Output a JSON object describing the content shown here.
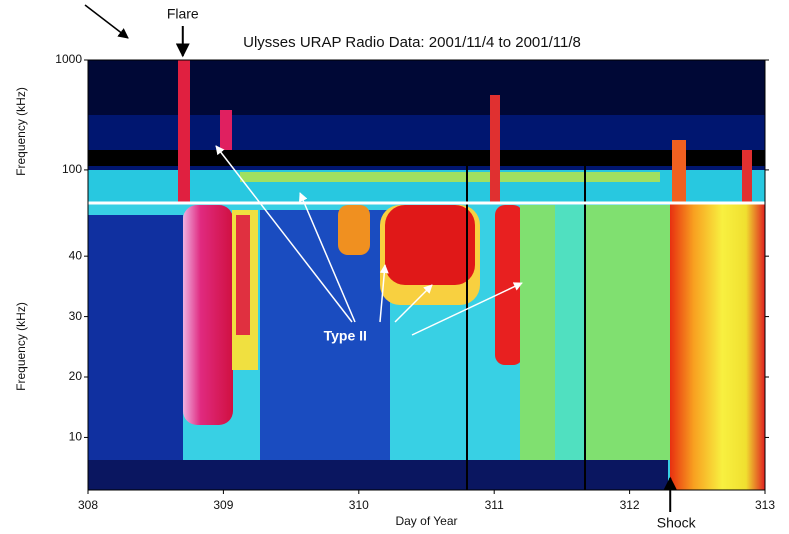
{
  "chart_data": [
    {
      "type": "spectrogram",
      "title": "Ulysses URAP Radio Data: 2001/11/4 to 2001/11/8",
      "y_label": "Frequency (kHz)",
      "log_scale": true,
      "ylim": [
        50,
        1000
      ],
      "yticks": [
        100,
        1000
      ],
      "xlim": [
        308,
        313
      ],
      "annotations": [
        {
          "text": "Flare",
          "x": 308.7
        }
      ]
    },
    {
      "type": "spectrogram",
      "y_label": "Frequency (kHz)",
      "x_label": "Day of Year",
      "ylim": [
        1.3,
        48.8
      ],
      "yticks": [
        10,
        20,
        30,
        40
      ],
      "xlim": [
        308,
        313
      ],
      "xticks": [
        308,
        309,
        310,
        311,
        312,
        313
      ],
      "annotations": [
        {
          "text": "Type II",
          "x": 309.9
        },
        {
          "text": "Shock",
          "x": 312.3
        }
      ]
    }
  ]
}
